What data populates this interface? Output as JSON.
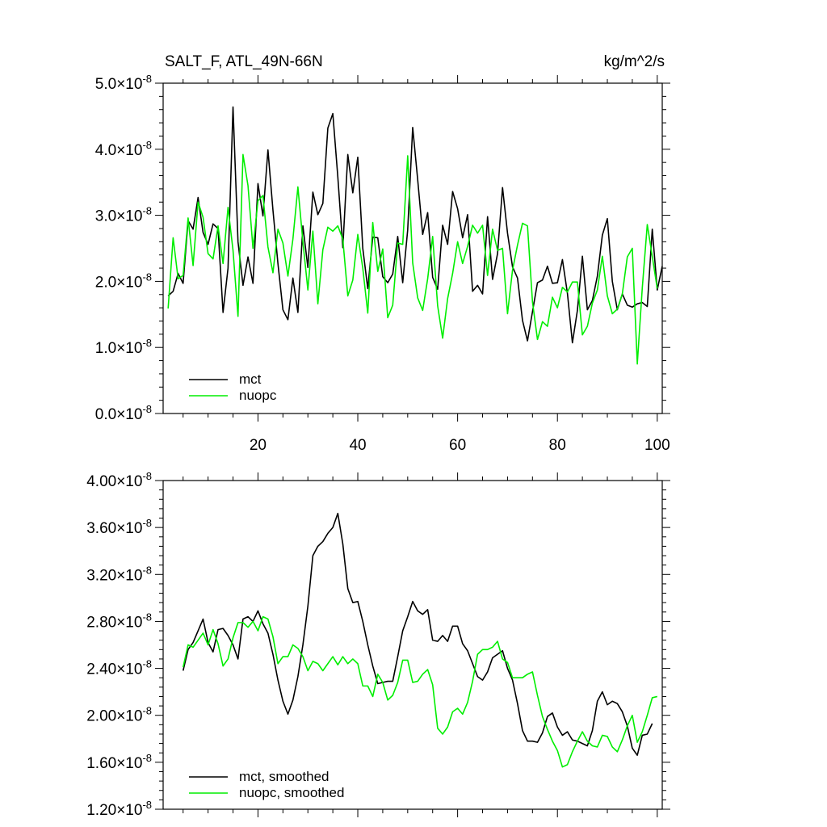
{
  "chart_data": [
    {
      "type": "line",
      "title_left": "SALT_F, ATL_49N-66N",
      "title_right": "kg/m^2/s",
      "xlim": [
        1,
        101
      ],
      "ylim": [
        0.0,
        5e-08
      ],
      "x_ticks": [
        20,
        40,
        60,
        80,
        100
      ],
      "y_ticks": [
        {
          "value": 0.0,
          "mantissa": "0.0",
          "exp": "-8"
        },
        {
          "value": 1e-08,
          "mantissa": "1.0",
          "exp": "-8"
        },
        {
          "value": 2e-08,
          "mantissa": "2.0",
          "exp": "-8"
        },
        {
          "value": 3e-08,
          "mantissa": "3.0",
          "exp": "-8"
        },
        {
          "value": 4e-08,
          "mantissa": "4.0",
          "exp": "-8"
        },
        {
          "value": 5e-08,
          "mantissa": "5.0",
          "exp": "-8"
        }
      ],
      "legend_position": "bottom-left",
      "series": [
        {
          "name": "mct",
          "color": "#000000",
          "x_start": 2,
          "values": [
            1.78,
            1.85,
            2.12,
            1.97,
            2.92,
            2.79,
            3.27,
            2.74,
            2.56,
            2.87,
            2.8,
            1.53,
            2.2,
            4.64,
            2.6,
            1.94,
            2.37,
            1.97,
            3.48,
            2.99,
            3.99,
            3.08,
            2.27,
            1.57,
            1.42,
            2.05,
            1.53,
            2.84,
            2.21,
            3.35,
            3.01,
            3.18,
            4.32,
            4.54,
            3.58,
            2.51,
            3.92,
            3.34,
            3.88,
            2.5,
            1.89,
            2.67,
            2.66,
            2.07,
            1.98,
            2.11,
            2.68,
            1.98,
            2.78,
            4.33,
            3.54,
            2.71,
            3.04,
            2.06,
            1.88,
            2.85,
            2.56,
            3.36,
            3.1,
            2.66,
            3.01,
            1.85,
            1.94,
            1.81,
            2.98,
            2.03,
            2.42,
            3.42,
            2.73,
            2.22,
            2.05,
            1.41,
            1.1,
            1.54,
            1.98,
            2.02,
            2.23,
            1.97,
            1.98,
            2.33,
            1.82,
            1.07,
            1.56,
            2.38,
            1.57,
            1.71,
            2.08,
            2.7,
            2.95,
            2.0,
            1.57,
            1.81,
            1.64,
            1.61,
            1.66,
            1.68,
            1.62,
            2.79,
            1.87,
            2.23
          ]
        },
        {
          "name": "nuopc",
          "color": "#00ee00",
          "x_start": 2,
          "values": [
            1.59,
            2.66,
            2.04,
            2.09,
            2.96,
            2.24,
            3.2,
            2.97,
            2.42,
            2.34,
            2.84,
            2.27,
            3.12,
            2.47,
            1.47,
            3.92,
            3.45,
            2.5,
            3.22,
            3.3,
            2.52,
            2.13,
            2.79,
            2.58,
            2.08,
            2.64,
            3.43,
            2.6,
            1.87,
            2.76,
            1.66,
            2.48,
            2.82,
            2.76,
            2.84,
            2.64,
            1.78,
            2.02,
            2.71,
            2.2,
            1.52,
            2.89,
            2.15,
            2.49,
            1.45,
            1.64,
            2.58,
            2.56,
            3.9,
            2.28,
            1.75,
            1.56,
            2.04,
            2.68,
            1.63,
            1.14,
            1.74,
            2.12,
            2.6,
            2.27,
            2.53,
            2.85,
            2.73,
            2.85,
            2.09,
            2.79,
            2.47,
            2.5,
            1.51,
            2.17,
            2.55,
            2.88,
            2.84,
            1.69,
            1.12,
            1.39,
            1.32,
            1.76,
            1.6,
            1.91,
            1.84,
            1.99,
            1.99,
            1.19,
            1.32,
            1.67,
            1.87,
            2.38,
            1.78,
            1.51,
            1.58,
            1.81,
            2.37,
            2.5,
            0.75,
            1.9,
            2.86,
            2.38,
            1.89
          ]
        }
      ]
    },
    {
      "type": "line",
      "xlim": [
        1,
        101
      ],
      "ylim": [
        1.2e-08,
        4e-08
      ],
      "x_ticks": [
        20,
        40,
        60,
        80,
        100
      ],
      "y_ticks": [
        {
          "value": 1.2e-08,
          "mantissa": "1.20",
          "exp": "-8"
        },
        {
          "value": 1.6e-08,
          "mantissa": "1.60",
          "exp": "-8"
        },
        {
          "value": 2e-08,
          "mantissa": "2.00",
          "exp": "-8"
        },
        {
          "value": 2.4e-08,
          "mantissa": "2.40",
          "exp": "-8"
        },
        {
          "value": 2.8e-08,
          "mantissa": "2.80",
          "exp": "-8"
        },
        {
          "value": 3.2e-08,
          "mantissa": "3.20",
          "exp": "-8"
        },
        {
          "value": 3.6e-08,
          "mantissa": "3.60",
          "exp": "-8"
        },
        {
          "value": 4e-08,
          "mantissa": "4.00",
          "exp": "-8"
        }
      ],
      "legend_position": "bottom-left",
      "series": [
        {
          "name": "mct, smoothed",
          "color": "#000000",
          "x_start": 5,
          "values": [
            2.38,
            2.56,
            2.62,
            2.72,
            2.82,
            2.62,
            2.54,
            2.73,
            2.74,
            2.68,
            2.6,
            2.48,
            2.82,
            2.84,
            2.8,
            2.89,
            2.78,
            2.7,
            2.52,
            2.3,
            2.12,
            2.01,
            2.13,
            2.33,
            2.6,
            2.93,
            3.36,
            3.44,
            3.48,
            3.55,
            3.6,
            3.72,
            3.46,
            3.08,
            2.96,
            2.97,
            2.8,
            2.6,
            2.42,
            2.27,
            2.28,
            2.29,
            2.29,
            2.5,
            2.72,
            2.84,
            2.97,
            2.89,
            2.86,
            2.9,
            2.64,
            2.63,
            2.68,
            2.63,
            2.76,
            2.76,
            2.61,
            2.55,
            2.44,
            2.33,
            2.3,
            2.37,
            2.49,
            2.52,
            2.55,
            2.4,
            2.3,
            2.1,
            1.87,
            1.78,
            1.78,
            1.77,
            1.85,
            1.99,
            2.02,
            1.9,
            1.83,
            1.86,
            1.79,
            1.78,
            1.76,
            1.74,
            1.87,
            2.12,
            2.2,
            2.09,
            2.12,
            2.1,
            2.03,
            1.91,
            1.72,
            1.66,
            1.83,
            1.84,
            1.93
          ]
        },
        {
          "name": "nuopc, smoothed",
          "color": "#00ee00",
          "x_start": 5,
          "values": [
            2.41,
            2.6,
            2.58,
            2.64,
            2.7,
            2.6,
            2.73,
            2.61,
            2.42,
            2.48,
            2.66,
            2.79,
            2.79,
            2.75,
            2.8,
            2.72,
            2.84,
            2.82,
            2.67,
            2.44,
            2.5,
            2.5,
            2.6,
            2.57,
            2.5,
            2.38,
            2.46,
            2.44,
            2.38,
            2.44,
            2.5,
            2.43,
            2.5,
            2.44,
            2.48,
            2.44,
            2.25,
            2.25,
            2.16,
            2.35,
            2.28,
            2.13,
            2.17,
            2.28,
            2.47,
            2.47,
            2.28,
            2.29,
            2.35,
            2.39,
            2.26,
            1.89,
            1.84,
            1.9,
            2.03,
            2.06,
            2.01,
            2.11,
            2.29,
            2.52,
            2.56,
            2.56,
            2.58,
            2.63,
            2.48,
            2.45,
            2.32,
            2.32,
            2.32,
            2.35,
            2.37,
            2.17,
            1.99,
            1.88,
            1.78,
            1.7,
            1.56,
            1.58,
            1.69,
            1.78,
            1.86,
            1.78,
            1.74,
            1.73,
            1.83,
            1.82,
            1.73,
            1.69,
            1.79,
            1.91,
            2.0,
            1.77,
            1.86,
            2.0,
            2.15,
            2.16
          ]
        }
      ]
    }
  ]
}
